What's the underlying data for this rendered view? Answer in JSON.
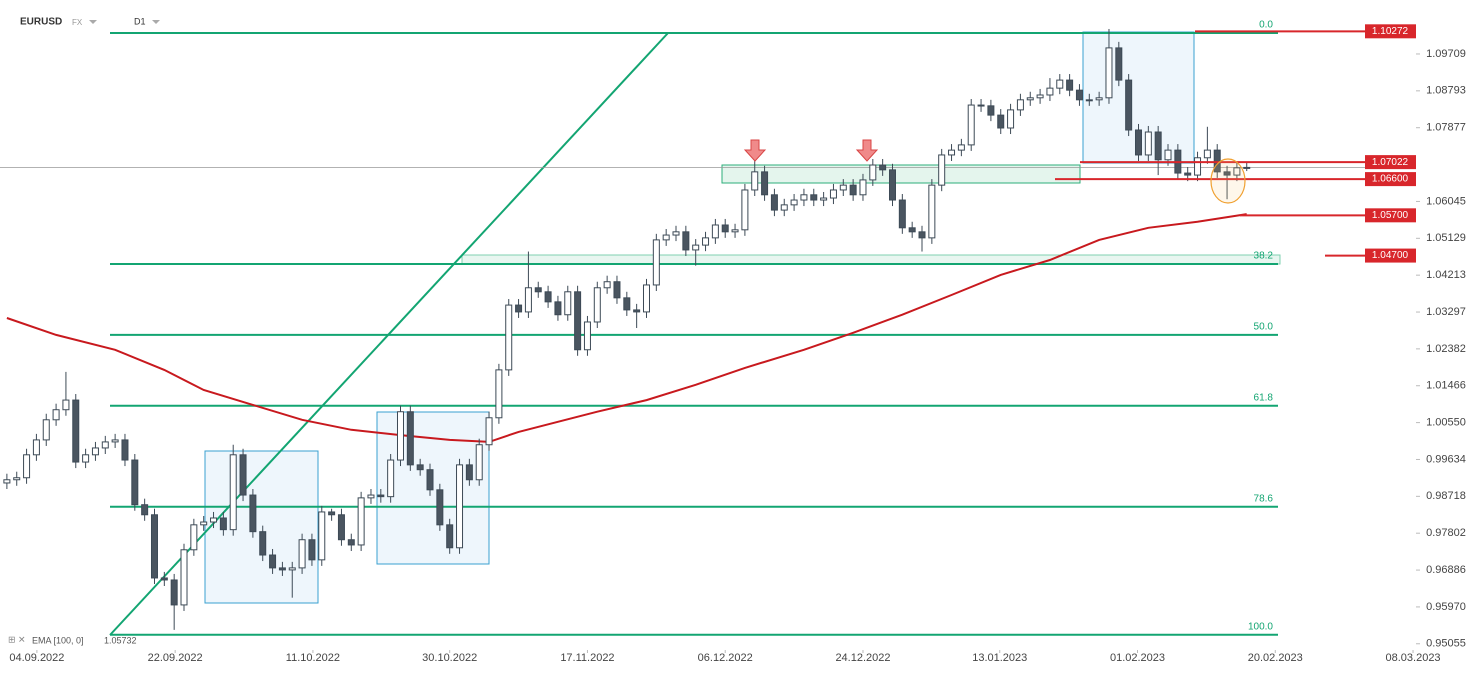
{
  "chart_data": {
    "type": "candlestick",
    "symbol": "EURUSD",
    "market": "FX",
    "timeframe": "D1",
    "open": [
      0.9905,
      0.9913,
      0.9918,
      0.9975,
      1.0012,
      1.0062,
      1.0087,
      1.0111,
      0.9957,
      0.9975,
      0.9992,
      1.0007,
      1.0012,
      0.9962,
      0.9851,
      0.9826,
      0.9669,
      0.9664,
      0.9602,
      0.9739,
      0.9801,
      0.9808,
      0.9818,
      0.9789,
      0.9975,
      0.9875,
      0.9784,
      0.9726,
      0.9694,
      0.9689,
      0.9694,
      0.9764,
      0.9714,
      0.9833,
      0.9826,
      0.9764,
      0.9751,
      0.9868,
      0.9875,
      0.9871,
      0.9962,
      1.0082,
      0.995,
      0.9938,
      0.9888,
      0.9801,
      0.9744,
      0.995,
      0.9913,
      1.0,
      1.0067,
      1.0186,
      1.0347,
      1.033,
      1.039,
      1.038,
      1.0355,
      1.0323,
      1.038,
      1.0236,
      1.0305,
      1.039,
      1.0405,
      1.0365,
      1.0335,
      1.033,
      1.0397,
      1.0509,
      1.0521,
      1.0529,
      1.0484,
      1.0496,
      1.0514,
      1.0546,
      1.0529,
      1.0534,
      1.0633,
      1.0678,
      1.0621,
      1.0583,
      1.0596,
      1.0608,
      1.0621,
      1.0608,
      1.0613,
      1.0633,
      1.0645,
      1.0621,
      1.0658,
      1.0695,
      1.0683,
      1.0608,
      1.0539,
      1.0529,
      1.0514,
      1.0645,
      1.072,
      1.0732,
      1.0745,
      1.0844,
      1.0842,
      1.0819,
      1.0787,
      1.0832,
      1.0857,
      1.0862,
      1.0869,
      1.0886,
      1.0906,
      1.0881,
      1.0857,
      1.0857,
      1.0862,
      1.0986,
      1.0906,
      1.0782,
      1.072,
      1.0777,
      1.0708,
      1.0732,
      1.0675,
      1.067,
      1.0713,
      1.0732,
      1.0678,
      1.067,
      1.0688
    ],
    "high": [
      0.9928,
      0.9933,
      0.999,
      1.0027,
      1.0077,
      1.0102,
      1.0181,
      1.0126,
      0.999,
      1.0007,
      1.0022,
      1.0027,
      1.0027,
      0.9977,
      0.9866,
      0.9841,
      0.9684,
      0.9679,
      0.9754,
      0.9816,
      0.9823,
      0.9833,
      0.9833,
      1.0,
      0.999,
      0.989,
      0.9799,
      0.9741,
      0.9709,
      0.9709,
      0.9779,
      0.9779,
      0.9848,
      0.9841,
      0.9841,
      0.9779,
      0.9883,
      0.989,
      0.989,
      0.9977,
      1.0097,
      1.0097,
      0.9965,
      0.9953,
      0.9903,
      0.9816,
      0.9965,
      0.9965,
      1.0015,
      1.0082,
      1.0201,
      1.0362,
      1.0362,
      1.048,
      1.0405,
      1.0395,
      1.037,
      1.0395,
      1.0395,
      1.032,
      1.0405,
      1.042,
      1.042,
      1.038,
      1.035,
      1.0412,
      1.0524,
      1.0536,
      1.0544,
      1.0544,
      1.0511,
      1.0529,
      1.0561,
      1.0561,
      1.0549,
      1.0648,
      1.0713,
      1.0693,
      1.0636,
      1.0611,
      1.0623,
      1.0636,
      1.0636,
      1.0628,
      1.0648,
      1.066,
      1.066,
      1.0673,
      1.071,
      1.071,
      1.0698,
      1.0623,
      1.0554,
      1.0544,
      1.066,
      1.0735,
      1.0747,
      1.076,
      1.0859,
      1.0859,
      1.0857,
      1.0834,
      1.0847,
      1.0872,
      1.0877,
      1.0884,
      1.0911,
      1.0921,
      1.0921,
      1.0896,
      1.0872,
      1.0877,
      1.1033,
      1.1001,
      1.0921,
      1.0797,
      1.0792,
      1.0792,
      1.0747,
      1.0747,
      1.069,
      1.0728,
      1.079,
      1.0747,
      1.0693,
      1.0703,
      1.07
    ],
    "low": [
      0.989,
      0.9898,
      0.9903,
      0.996,
      0.9997,
      1.0047,
      1.0072,
      0.9942,
      0.9942,
      0.996,
      0.9977,
      0.9992,
      0.9947,
      0.9836,
      0.9811,
      0.9654,
      0.9649,
      0.954,
      0.9587,
      0.9724,
      0.9786,
      0.9793,
      0.9774,
      0.9774,
      0.986,
      0.9769,
      0.9711,
      0.9679,
      0.9674,
      0.962,
      0.9679,
      0.9699,
      0.9699,
      0.9811,
      0.9749,
      0.9736,
      0.9736,
      0.9853,
      0.9856,
      0.9856,
      0.9947,
      0.9935,
      0.9923,
      0.9873,
      0.9786,
      0.9729,
      0.9729,
      0.9898,
      0.9898,
      0.9985,
      1.0052,
      1.0171,
      1.0315,
      1.0315,
      1.0365,
      1.034,
      1.0308,
      1.0308,
      1.0221,
      1.0221,
      1.029,
      1.0375,
      1.035,
      1.032,
      1.029,
      1.0315,
      1.0382,
      1.0494,
      1.0506,
      1.0469,
      1.0445,
      1.0481,
      1.0499,
      1.0514,
      1.0514,
      1.0519,
      1.0618,
      1.0606,
      1.0568,
      1.0568,
      1.0581,
      1.0593,
      1.0593,
      1.0593,
      1.0598,
      1.0618,
      1.0606,
      1.0606,
      1.0643,
      1.0668,
      1.0593,
      1.0524,
      1.0514,
      1.048,
      1.0499,
      1.063,
      1.0705,
      1.0717,
      1.073,
      1.0827,
      1.0804,
      1.0772,
      1.0772,
      1.0817,
      1.0842,
      1.0847,
      1.0854,
      1.0871,
      1.0866,
      1.0842,
      1.0842,
      1.0842,
      1.0847,
      1.0891,
      1.0767,
      1.0705,
      1.0705,
      1.067,
      1.0693,
      1.066,
      1.0655,
      1.0655,
      1.0698,
      1.0663,
      1.061,
      1.0655,
      1.068
    ],
    "close": [
      0.9913,
      0.9918,
      0.9975,
      1.0012,
      1.0062,
      1.0087,
      1.0111,
      0.9957,
      0.9975,
      0.9992,
      1.0007,
      1.0012,
      0.9962,
      0.9851,
      0.9826,
      0.9669,
      0.9664,
      0.9602,
      0.9739,
      0.9801,
      0.9808,
      0.9818,
      0.9789,
      0.9975,
      0.9875,
      0.9784,
      0.9726,
      0.9694,
      0.9689,
      0.9694,
      0.9764,
      0.9714,
      0.9833,
      0.9826,
      0.9764,
      0.9751,
      0.9868,
      0.9875,
      0.9871,
      0.9962,
      1.0082,
      0.995,
      0.9938,
      0.9888,
      0.9801,
      0.9744,
      0.995,
      0.9913,
      1.0,
      1.0067,
      1.0186,
      1.0347,
      1.033,
      1.039,
      1.038,
      1.0355,
      1.0323,
      1.038,
      1.0236,
      1.0305,
      1.039,
      1.0405,
      1.0365,
      1.0335,
      1.033,
      1.0397,
      1.0509,
      1.0521,
      1.0529,
      1.0484,
      1.0496,
      1.0514,
      1.0546,
      1.0529,
      1.0534,
      1.0633,
      1.0678,
      1.0621,
      1.0583,
      1.0596,
      1.0608,
      1.0621,
      1.0608,
      1.0613,
      1.0633,
      1.0645,
      1.0621,
      1.0658,
      1.0695,
      1.0683,
      1.0608,
      1.0539,
      1.0529,
      1.0514,
      1.0645,
      1.072,
      1.0732,
      1.0745,
      1.0844,
      1.0842,
      1.0819,
      1.0787,
      1.0832,
      1.0857,
      1.0862,
      1.0869,
      1.0886,
      1.0906,
      1.0881,
      1.0857,
      1.0857,
      1.0862,
      1.0986,
      1.0906,
      1.0782,
      1.072,
      1.0777,
      1.0708,
      1.0732,
      1.0675,
      1.067,
      1.0713,
      1.0732,
      1.0678,
      1.067,
      1.0688,
      1.0689
    ],
    "bull_color": "#ffffff",
    "bear_color": "#4a5560",
    "ema": {
      "label": "EMA [100, 0]",
      "last": 1.05732,
      "color": "#c8191e",
      "x": [
        0,
        5,
        11,
        16,
        20,
        25,
        30,
        35,
        40,
        45,
        49,
        52,
        56,
        60,
        65,
        70,
        75,
        81,
        86,
        91,
        96,
        101,
        106,
        111,
        116,
        121,
        126
      ],
      "values": [
        1.0315,
        1.0273,
        1.0236,
        1.0186,
        1.0136,
        1.0099,
        1.0062,
        1.0037,
        1.0024,
        1.0012,
        1.0007,
        1.0032,
        1.0057,
        1.0082,
        1.0111,
        1.0149,
        1.0191,
        1.0236,
        1.0278,
        1.0323,
        1.0372,
        1.0422,
        1.0459,
        1.0509,
        1.0539,
        1.0554,
        1.0573
      ]
    },
    "fibonacci": [
      {
        "label": "0.0",
        "price": 1.1023
      },
      {
        "label": "38.2",
        "price": 1.0449
      },
      {
        "label": "50.0",
        "price": 1.0273
      },
      {
        "label": "61.8",
        "price": 1.0097
      },
      {
        "label": "78.6",
        "price": 0.9846
      },
      {
        "label": "100.0",
        "price": 0.9528
      }
    ],
    "levels": [
      {
        "value": 1.10272,
        "label": "1.10272"
      },
      {
        "value": 1.07022,
        "label": "1.07022"
      },
      {
        "value": 1.066,
        "label": "1.06600"
      },
      {
        "value": 1.057,
        "label": "1.05700"
      },
      {
        "value": 1.047,
        "label": "1.04700"
      }
    ],
    "last_price": 1.06889,
    "xlim": [
      -0.7,
      143.1
    ],
    "xticks": [
      {
        "value": 3.05,
        "label": "04.09.2022"
      },
      {
        "value": 17.1,
        "label": "22.09.2022"
      },
      {
        "value": 31.1,
        "label": "11.10.2022"
      },
      {
        "value": 45.0,
        "label": "30.10.2022"
      },
      {
        "value": 59.0,
        "label": "17.11.2022"
      },
      {
        "value": 73.0,
        "label": "06.12.2022"
      },
      {
        "value": 87.0,
        "label": "24.12.2022"
      },
      {
        "value": 100.9,
        "label": "13.01.2023"
      },
      {
        "value": 114.9,
        "label": "01.02.2023"
      },
      {
        "value": 128.9,
        "label": "20.02.2023"
      },
      {
        "value": 142.9,
        "label": "08.03.2023"
      }
    ],
    "ylim": [
      0.949,
      1.1105
    ],
    "yticks": [
      1.09709,
      1.08793,
      1.07877,
      1.06045,
      1.05129,
      1.04213,
      1.03297,
      1.02382,
      1.01466,
      {
        "value": 1.0055,
        "label": "1.00550"
      },
      0.99634,
      0.98718,
      0.97802,
      0.96886,
      {
        "value": 0.9597,
        "label": "0.95970"
      },
      0.95055
    ]
  }
}
